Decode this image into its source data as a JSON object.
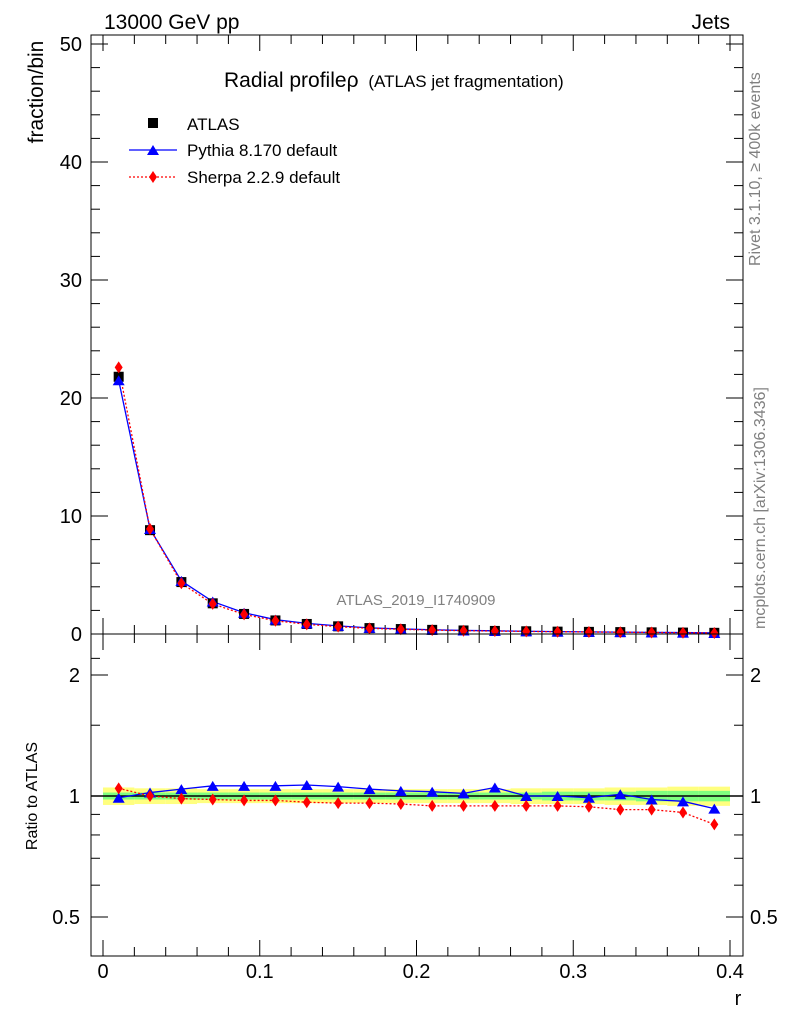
{
  "header": {
    "energy_label": "13000 GeV pp",
    "process_label": "Jets"
  },
  "side_text": {
    "rivet": "Rivet 3.1.10, ≥ 400k events",
    "mcplots": "mcplots.cern.ch [arXiv:1306.3436]"
  },
  "analysis_id": "ATLAS_2019_I1740909",
  "colors": {
    "data": "#000000",
    "pythia": "#0000ff",
    "sherpa": "#ff0000",
    "band_inner": "#7fff7f",
    "band_outer": "#ffff7f"
  },
  "chart_data": [
    {
      "type": "line",
      "title": "Radial profileρ",
      "subtitle": "(ATLAS jet fragmentation)",
      "ylabel": "fraction/bin",
      "xlabel": "",
      "xlim": [
        0,
        0.4
      ],
      "ylim": [
        0,
        50
      ],
      "y_ticks": [
        "0",
        "10",
        "20",
        "30",
        "40",
        "50"
      ],
      "grid": false,
      "legend_position": "top-left",
      "x": [
        0.01,
        0.03,
        0.05,
        0.07,
        0.09,
        0.11,
        0.13,
        0.15,
        0.17,
        0.19,
        0.21,
        0.23,
        0.25,
        0.27,
        0.29,
        0.31,
        0.33,
        0.35,
        0.37,
        0.39
      ],
      "series": [
        {
          "name": "ATLAS",
          "marker": "square",
          "values": [
            21.8,
            8.8,
            4.4,
            2.6,
            1.7,
            1.15,
            0.85,
            0.65,
            0.5,
            0.42,
            0.35,
            0.3,
            0.26,
            0.23,
            0.2,
            0.18,
            0.16,
            0.14,
            0.12,
            0.1
          ]
        },
        {
          "name": "Pythia 8.170 default",
          "marker": "triangle",
          "values": [
            21.5,
            8.9,
            4.5,
            2.75,
            1.8,
            1.22,
            0.9,
            0.69,
            0.52,
            0.43,
            0.36,
            0.3,
            0.27,
            0.23,
            0.2,
            0.18,
            0.16,
            0.14,
            0.12,
            0.09
          ]
        },
        {
          "name": "Sherpa 2.2.9 default",
          "marker": "diamond",
          "values": [
            22.6,
            8.9,
            4.3,
            2.55,
            1.66,
            1.12,
            0.82,
            0.62,
            0.48,
            0.4,
            0.33,
            0.28,
            0.25,
            0.22,
            0.19,
            0.17,
            0.15,
            0.13,
            0.11,
            0.09
          ]
        }
      ]
    },
    {
      "type": "line",
      "title": "",
      "xlabel": "r",
      "ylabel": "Ratio to ATLAS",
      "xlim": [
        0,
        0.4
      ],
      "ylim": [
        0.42,
        2.28
      ],
      "y_ticks": [
        "0.5",
        "1",
        "2"
      ],
      "x_ticks": [
        "0",
        "0.1",
        "0.2",
        "0.3",
        "0.4"
      ],
      "grid": false,
      "x": [
        0.01,
        0.03,
        0.05,
        0.07,
        0.09,
        0.11,
        0.13,
        0.15,
        0.17,
        0.19,
        0.21,
        0.23,
        0.25,
        0.27,
        0.29,
        0.31,
        0.33,
        0.35,
        0.37,
        0.39
      ],
      "series": [
        {
          "name": "Pythia 8.170 default",
          "values": [
            0.99,
            1.02,
            1.04,
            1.06,
            1.06,
            1.06,
            1.065,
            1.055,
            1.04,
            1.03,
            1.025,
            1.015,
            1.05,
            1.0,
            1.0,
            0.99,
            1.01,
            0.98,
            0.97,
            0.93
          ]
        },
        {
          "name": "Sherpa 2.2.9 default",
          "values": [
            1.045,
            1.0,
            0.985,
            0.98,
            0.975,
            0.975,
            0.965,
            0.96,
            0.96,
            0.955,
            0.945,
            0.945,
            0.945,
            0.945,
            0.945,
            0.94,
            0.925,
            0.925,
            0.91,
            0.85
          ]
        }
      ],
      "band_inner_halfwidth": [
        0.02,
        0.02,
        0.02,
        0.02,
        0.02,
        0.02,
        0.02,
        0.02,
        0.02,
        0.02,
        0.02,
        0.02,
        0.02,
        0.02,
        0.025,
        0.025,
        0.025,
        0.03,
        0.03,
        0.03
      ],
      "band_outer_halfwidth": [
        0.05,
        0.045,
        0.045,
        0.04,
        0.04,
        0.04,
        0.04,
        0.04,
        0.04,
        0.04,
        0.04,
        0.04,
        0.04,
        0.045,
        0.045,
        0.045,
        0.05,
        0.05,
        0.055,
        0.055
      ]
    }
  ]
}
